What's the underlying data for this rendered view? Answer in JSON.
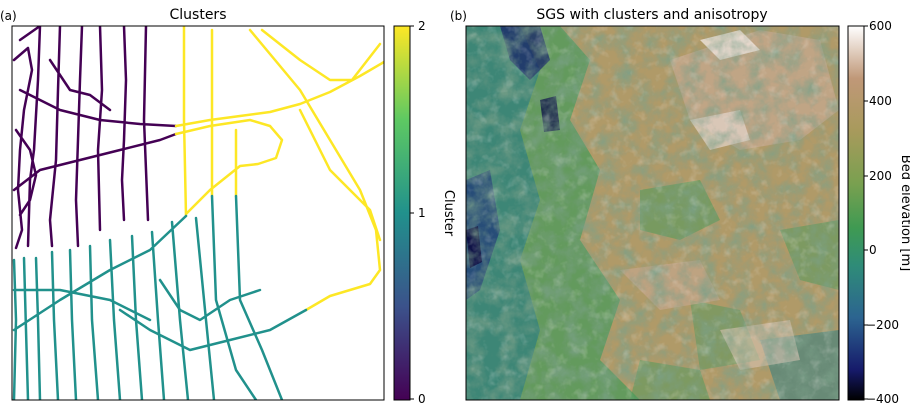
{
  "chart_data": [
    {
      "type": "heatmap",
      "panel_label": "(a)",
      "title": "Clusters",
      "colormap": "viridis",
      "colorbar": {
        "label": "Cluster",
        "ticks": [
          "0",
          "1",
          "2"
        ],
        "range": [
          0,
          2
        ]
      },
      "clusters": [
        {
          "value": 0,
          "color": "#440154",
          "region": "upper-left"
        },
        {
          "value": 1,
          "color": "#21918c",
          "region": "lower"
        },
        {
          "value": 2,
          "color": "#fde725",
          "region": "upper-right"
        }
      ],
      "background": "#ffffff"
    },
    {
      "type": "heatmap",
      "panel_label": "(b)",
      "title": "SGS with clusters and anisotropy",
      "colormap": "gist_earth",
      "colorbar": {
        "label": "Bed elevation [m]",
        "ticks": [
          "600",
          "400",
          "200",
          "0",
          "−200",
          "−400"
        ],
        "range": [
          -400,
          600
        ]
      },
      "colors": {
        "low": "#0a0a3c",
        "mid_low": "#2a6e8a",
        "zero": "#3c9a5a",
        "mid": "#a89a5a",
        "high": "#c8a88a",
        "max": "#ffffff"
      }
    }
  ]
}
